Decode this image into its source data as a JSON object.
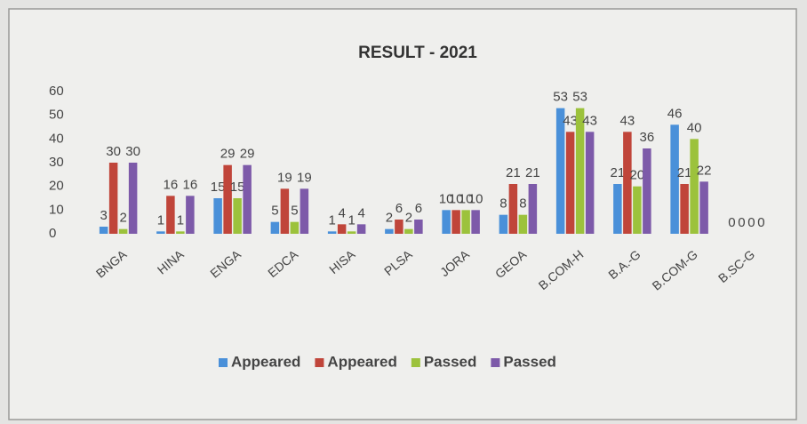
{
  "chart_data": {
    "type": "bar",
    "title": "RESULT - 2021",
    "categories": [
      "BNGA",
      "HINA",
      "ENGA",
      "EDCA",
      "HISA",
      "PLSA",
      "JORA",
      "GEOA",
      "B.COM-H",
      "B.A.-G",
      "B.COM-G",
      "B.SC-G"
    ],
    "series": [
      {
        "name": "Appeared",
        "color": "#4a90d9",
        "values": [
          3,
          1,
          15,
          5,
          1,
          2,
          10,
          8,
          53,
          21,
          46,
          0
        ]
      },
      {
        "name": "Appeared",
        "color": "#c0453a",
        "values": [
          30,
          16,
          29,
          19,
          4,
          6,
          10,
          21,
          43,
          43,
          21,
          0
        ]
      },
      {
        "name": "Passed",
        "color": "#9cc23c",
        "values": [
          2,
          1,
          15,
          5,
          1,
          2,
          10,
          8,
          53,
          20,
          40,
          0
        ]
      },
      {
        "name": "Passed",
        "color": "#7d5aa9",
        "values": [
          30,
          16,
          29,
          19,
          4,
          6,
          10,
          21,
          43,
          36,
          22,
          0
        ]
      }
    ],
    "ylim": [
      0,
      60
    ],
    "yticks": [
      0,
      10,
      20,
      30,
      40,
      50,
      60
    ],
    "grid": false,
    "legend": "bottom"
  }
}
